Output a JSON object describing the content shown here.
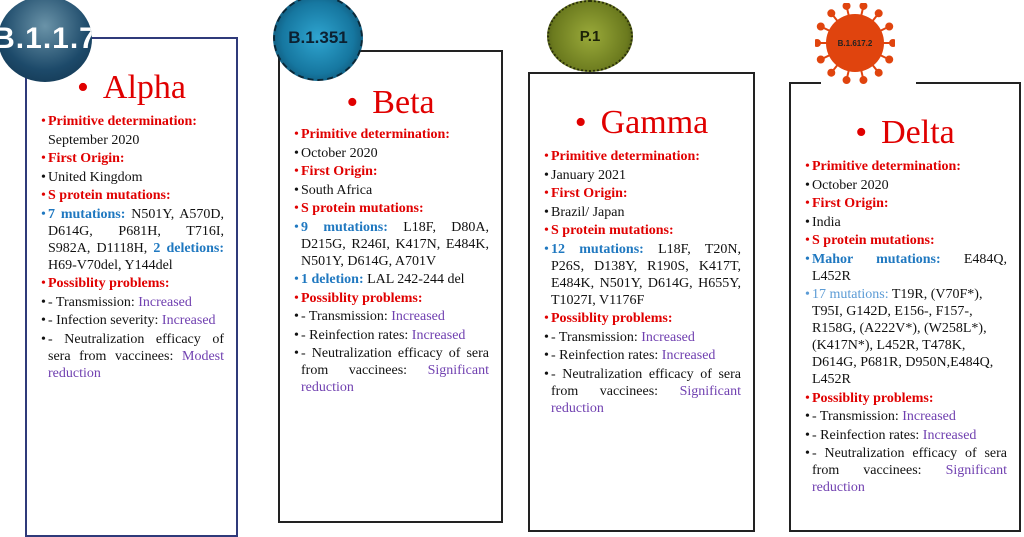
{
  "variants": [
    {
      "key": "alpha",
      "lineage": "B.1.1.7",
      "name": "Alpha",
      "items": [
        {
          "bullet": true,
          "segs": [
            {
              "t": "Primitive determination:",
              "c": "red"
            }
          ]
        },
        {
          "bullet": false,
          "segs": [
            {
              "t": "September 2020",
              "c": ""
            }
          ]
        },
        {
          "bullet": true,
          "segs": [
            {
              "t": "First Origin:",
              "c": "red"
            }
          ]
        },
        {
          "bullet": true,
          "segs": [
            {
              "t": "United Kingdom",
              "c": ""
            }
          ]
        },
        {
          "bullet": true,
          "segs": [
            {
              "t": "S protein mutations:",
              "c": "red"
            }
          ]
        },
        {
          "bullet": true,
          "bc": "blue",
          "segs": [
            {
              "t": "7 mutations: ",
              "c": "blue"
            },
            {
              "t": "N501Y, A570D, D614G, P681H, T716I, S982A, D1118H, ",
              "c": ""
            },
            {
              "t": "2 deletions: ",
              "c": "blue"
            },
            {
              "t": "H69-V70del, Y144del",
              "c": ""
            }
          ]
        },
        {
          "bullet": true,
          "segs": [
            {
              "t": "Possiblity problems:",
              "c": "red"
            }
          ]
        },
        {
          "bullet": true,
          "segs": [
            {
              "t": "- Transmission: ",
              "c": ""
            },
            {
              "t": "Increased",
              "c": "purple"
            }
          ]
        },
        {
          "bullet": true,
          "segs": [
            {
              "t": "- Infection severity: ",
              "c": ""
            },
            {
              "t": "Increased",
              "c": "purple"
            }
          ]
        },
        {
          "bullet": true,
          "segs": [
            {
              "t": "- Neutralization efficacy of sera from vaccinees: ",
              "c": ""
            },
            {
              "t": "Modest reduction",
              "c": "purple"
            }
          ]
        }
      ]
    },
    {
      "key": "beta",
      "lineage": "B.1.351",
      "name": "Beta",
      "items": [
        {
          "bullet": true,
          "segs": [
            {
              "t": "Primitive determination:",
              "c": "red"
            }
          ]
        },
        {
          "bullet": true,
          "segs": [
            {
              "t": "October 2020",
              "c": ""
            }
          ]
        },
        {
          "bullet": true,
          "segs": [
            {
              "t": "First Origin:",
              "c": "red"
            }
          ]
        },
        {
          "bullet": true,
          "segs": [
            {
              "t": "South Africa",
              "c": ""
            }
          ]
        },
        {
          "bullet": true,
          "segs": [
            {
              "t": "S protein mutations:",
              "c": "red"
            }
          ]
        },
        {
          "bullet": true,
          "bc": "blue",
          "segs": [
            {
              "t": "9 mutations: ",
              "c": "blue"
            },
            {
              "t": "L18F, D80A, D215G, R246I, K417N, E484K, N501Y, D614G, A701V",
              "c": ""
            }
          ]
        },
        {
          "bullet": true,
          "bc": "blue",
          "segs": [
            {
              "t": "1 deletion: ",
              "c": "blue"
            },
            {
              "t": "LAL 242-244 del",
              "c": ""
            }
          ]
        },
        {
          "bullet": true,
          "segs": [
            {
              "t": "Possiblity problems:",
              "c": "red"
            }
          ]
        },
        {
          "bullet": true,
          "segs": [
            {
              "t": "- Transmission: ",
              "c": ""
            },
            {
              "t": "Increased",
              "c": "purple"
            }
          ]
        },
        {
          "bullet": true,
          "segs": [
            {
              "t": "- Reinfection rates: ",
              "c": ""
            },
            {
              "t": "Increased",
              "c": "purple"
            }
          ]
        },
        {
          "bullet": true,
          "segs": [
            {
              "t": "- Neutralization efficacy of sera from vaccinees: ",
              "c": ""
            },
            {
              "t": "Significant reduction",
              "c": "purple"
            }
          ]
        }
      ]
    },
    {
      "key": "gamma",
      "lineage": "P.1",
      "name": "Gamma",
      "items": [
        {
          "bullet": true,
          "segs": [
            {
              "t": "Primitive determination:",
              "c": "red"
            }
          ]
        },
        {
          "bullet": true,
          "segs": [
            {
              "t": "January 2021",
              "c": ""
            }
          ]
        },
        {
          "bullet": true,
          "segs": [
            {
              "t": "First Origin:",
              "c": "red"
            }
          ]
        },
        {
          "bullet": true,
          "segs": [
            {
              "t": "Brazil/ Japan",
              "c": ""
            }
          ]
        },
        {
          "bullet": true,
          "segs": [
            {
              "t": "S protein mutations:",
              "c": "red"
            }
          ]
        },
        {
          "bullet": true,
          "bc": "blue",
          "segs": [
            {
              "t": "12 mutations: ",
              "c": "blue"
            },
            {
              "t": "L18F, T20N, P26S, D138Y, R190S, K417T, E484K, N501Y, D614G, H655Y, T1027I, V1176F",
              "c": ""
            }
          ]
        },
        {
          "bullet": true,
          "segs": [
            {
              "t": "Possiblity problems:",
              "c": "red"
            }
          ]
        },
        {
          "bullet": true,
          "segs": [
            {
              "t": "- Transmission: ",
              "c": ""
            },
            {
              "t": "Increased",
              "c": "purple"
            }
          ]
        },
        {
          "bullet": true,
          "segs": [
            {
              "t": "- Reinfection rates: ",
              "c": ""
            },
            {
              "t": "Increased",
              "c": "purple"
            }
          ]
        },
        {
          "bullet": true,
          "segs": [
            {
              "t": "- Neutralization efficacy of sera from vaccinees: ",
              "c": ""
            },
            {
              "t": "Significant reduction",
              "c": "purple"
            }
          ]
        }
      ]
    },
    {
      "key": "delta",
      "lineage": "B.1.617.2",
      "name": "Delta",
      "items": [
        {
          "bullet": true,
          "segs": [
            {
              "t": "Primitive determination:",
              "c": "red"
            }
          ]
        },
        {
          "bullet": true,
          "segs": [
            {
              "t": "October 2020",
              "c": ""
            }
          ]
        },
        {
          "bullet": true,
          "segs": [
            {
              "t": "First Origin:",
              "c": "red"
            }
          ]
        },
        {
          "bullet": true,
          "segs": [
            {
              "t": "India",
              "c": ""
            }
          ]
        },
        {
          "bullet": true,
          "segs": [
            {
              "t": "S protein mutations:",
              "c": "red"
            }
          ]
        },
        {
          "bullet": true,
          "bc": "blue",
          "segs": [
            {
              "t": "Mahor mutations: ",
              "c": "blue"
            },
            {
              "t": "E484Q, L452R",
              "c": ""
            }
          ]
        },
        {
          "bullet": true,
          "bc": "lblue",
          "left": true,
          "segs": [
            {
              "t": "17 mutations: ",
              "c": "lblue"
            },
            {
              "t": "T19R, (V70F*), T95I, G142D, E156-, F157-, R158G, (A222V*), (W258L*), (K417N*), L452R, T478K, D614G, P681R, D950N,E484Q, L452R",
              "c": ""
            }
          ]
        },
        {
          "bullet": true,
          "segs": [
            {
              "t": "Possiblity problems:",
              "c": "red"
            }
          ]
        },
        {
          "bullet": true,
          "segs": [
            {
              "t": "- Transmission: ",
              "c": ""
            },
            {
              "t": "Increased",
              "c": "purple"
            }
          ]
        },
        {
          "bullet": true,
          "segs": [
            {
              "t": "- Reinfection rates: ",
              "c": ""
            },
            {
              "t": "Increased",
              "c": "purple"
            }
          ]
        },
        {
          "bullet": true,
          "segs": [
            {
              "t": "- Neutralization efficacy of sera from vaccinees: ",
              "c": ""
            },
            {
              "t": "Significant reduction",
              "c": "purple"
            }
          ]
        }
      ]
    }
  ],
  "colors": {
    "title": "#e00000",
    "heading": "#e00000",
    "mutation_label": "#1f78c0",
    "outcome": "#7040b0"
  }
}
